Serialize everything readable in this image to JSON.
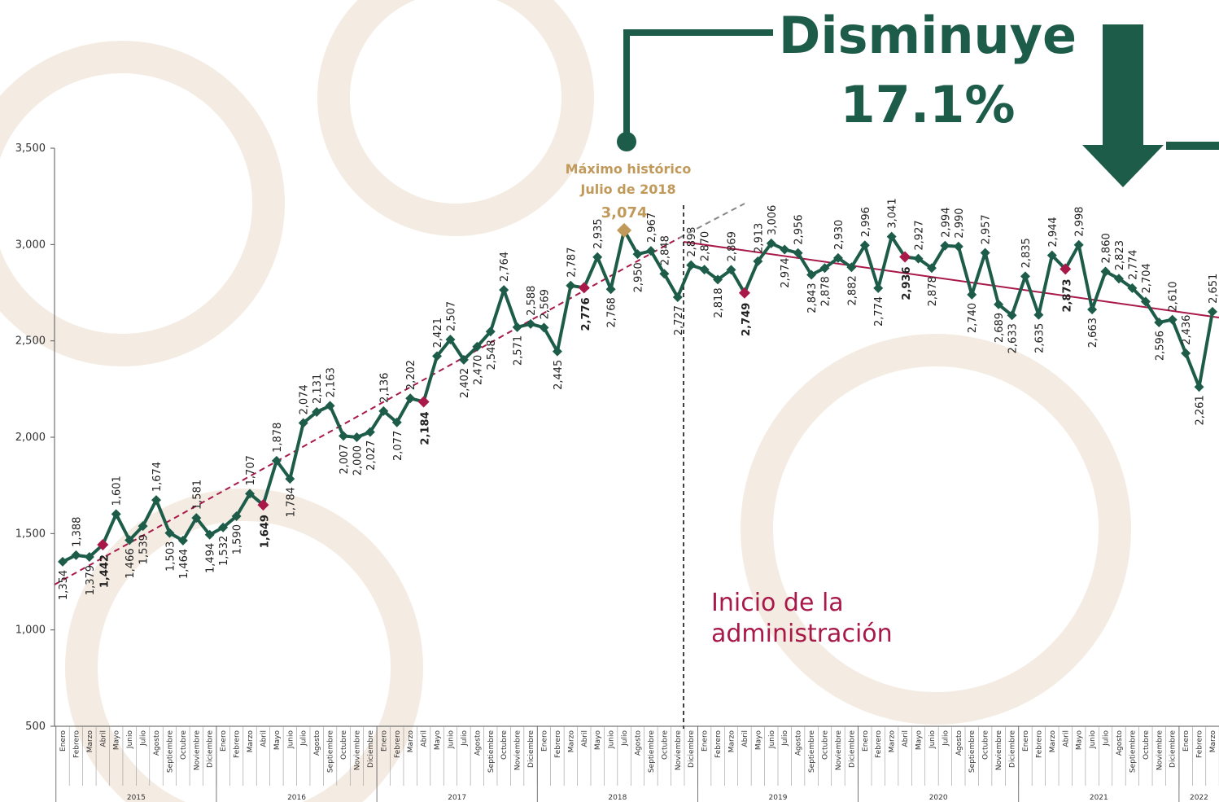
{
  "chart_data": {
    "type": "line",
    "headline": "Disminuye",
    "headline_value": "17.1%",
    "peak_note": [
      "Máximo histórico",
      "Julio de 2018"
    ],
    "admin_note": [
      "Inicio de la",
      "administración"
    ],
    "categories": [
      "Enero",
      "Febrero",
      "Marzo",
      "Abril",
      "Mayo",
      "Junio",
      "Julio",
      "Agosto",
      "Septiembre",
      "Octubre",
      "Noviembre",
      "Diciembre",
      "Enero",
      "Febrero",
      "Marzo",
      "Abril",
      "Mayo",
      "Junio",
      "Julio",
      "Agosto",
      "Septiembre",
      "Octubre",
      "Noviembre",
      "Diciembre",
      "Enero",
      "Febrero",
      "Marzo",
      "Abril",
      "Mayo",
      "Junio",
      "Julio",
      "Agosto",
      "Septiembre",
      "Octubre",
      "Noviembre",
      "Diciembre",
      "Enero",
      "Febrero",
      "Marzo",
      "Abril",
      "Mayo",
      "Junio",
      "Julio",
      "Agosto",
      "Septiembre",
      "Octubre",
      "Noviembre",
      "Diciembre",
      "Enero",
      "Febrero",
      "Marzo",
      "Abril",
      "Mayo",
      "Junio",
      "Julio",
      "Agosto",
      "Septiembre",
      "Octubre",
      "Noviembre",
      "Diciembre",
      "Enero",
      "Febrero",
      "Marzo",
      "Abril",
      "Mayo",
      "Junio",
      "Julio",
      "Agosto",
      "Septiembre",
      "Octubre",
      "Noviembre",
      "Diciembre",
      "Enero",
      "Febrero",
      "Marzo",
      "Abril",
      "Mayo",
      "Junio",
      "Julio",
      "Agosto",
      "Septiembre",
      "Octubre",
      "Noviembre",
      "Diciembre",
      "Enero",
      "Febrero",
      "Marzo"
    ],
    "years": [
      "2015",
      "2016",
      "2017",
      "2018",
      "2019",
      "2020",
      "2021",
      "2022"
    ],
    "series": [
      {
        "color": "#1e5c4a",
        "values": [
          1354,
          1388,
          1379,
          1442,
          1601,
          1466,
          1539,
          1674,
          1503,
          1464,
          1581,
          1494,
          1532,
          1590,
          1707,
          1649,
          1878,
          1784,
          2074,
          2131,
          2163,
          2007,
          2000,
          2027,
          2136,
          2077,
          2202,
          2184,
          2421,
          2507,
          2402,
          2470,
          2548,
          2764,
          2571,
          2588,
          2569,
          2445,
          2787,
          2776,
          2935,
          2768,
          3074,
          2950,
          2967,
          2848,
          2727,
          2893,
          2870,
          2818,
          2869,
          2749,
          2913,
          3006,
          2974,
          2956,
          2843,
          2878,
          2930,
          2882,
          2996,
          2774,
          3041,
          2936,
          2927,
          2878,
          2994,
          2990,
          2740,
          2957,
          2689,
          2633,
          2835,
          2635,
          2944,
          2873,
          2998,
          2663,
          2860,
          2823,
          2774,
          2704,
          2596,
          2610,
          2436,
          2261,
          2651
        ],
        "value_labels": [
          "1,354",
          "1,388",
          "1,379",
          "1,442",
          "1,601",
          "1,466",
          "1,539",
          "1,674",
          "1,503",
          "1,464",
          "1,581",
          "1,494",
          "1,532",
          "1,590",
          "1,707",
          "1,649",
          "1,878",
          "1,784",
          "2,074",
          "2,131",
          "2,163",
          "2,007",
          "2,000",
          "2,027",
          "2,136",
          "2,077",
          "2,202",
          "2,184",
          "2,421",
          "2,507",
          "2,402",
          "2,470",
          "2,548",
          "2,764",
          "2,571",
          "2,588",
          "2,569",
          "2,445",
          "2,787",
          "2,776",
          "2,935",
          "2,768",
          "3,074",
          "2,950",
          "2,967",
          "2,848",
          "2,727",
          "2,893",
          "2,870",
          "2,818",
          "2,869",
          "2,749",
          "2,913",
          "3,006",
          "2,974",
          "2,956",
          "2,843",
          "2,878",
          "2,930",
          "2,882",
          "2,996",
          "2,774",
          "3,041",
          "2,936",
          "2,927",
          "2,878",
          "2,994",
          "2,990",
          "2,740",
          "2,957",
          "2,689",
          "2,633",
          "2,835",
          "2,635",
          "2,944",
          "2,873",
          "2,998",
          "2,663",
          "2,860",
          "2,823",
          "2,774",
          "2,704",
          "2,596",
          "2,610",
          "2,436",
          "2,261",
          "2,651"
        ]
      }
    ],
    "highlight_month": "Abril",
    "highlight_color": "#a8194a",
    "peak_color": "#c19a5b",
    "ylim": [
      500,
      3500
    ],
    "yticks": [
      500,
      {
        "value": 1000,
        "label": "1,000"
      },
      {
        "value": 1500,
        "label": "1,500"
      },
      {
        "value": 2000,
        "label": "2,000"
      },
      {
        "value": 2500,
        "label": "2,500"
      },
      {
        "value": 3000,
        "label": "3,000"
      },
      {
        "value": 3500,
        "label": "3,500"
      }
    ]
  }
}
